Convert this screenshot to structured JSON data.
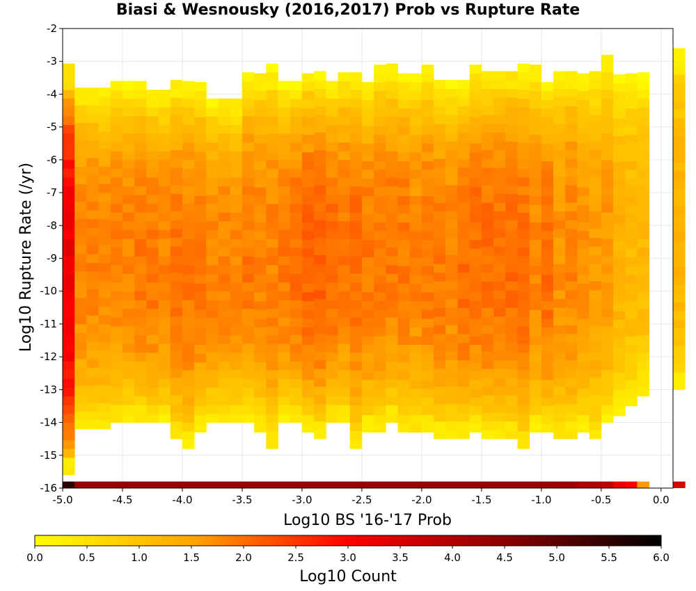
{
  "chart_data": {
    "type": "heatmap",
    "title": "Biasi & Wesnousky (2016,2017) Prob vs Rupture Rate",
    "xlabel": "Log10 BS '16-'17 Prob",
    "ylabel": "Log10 Rupture Rate (/yr)",
    "xlim": [
      -5.0,
      0.1
    ],
    "ylim": [
      -16,
      -2
    ],
    "x_ticks": [
      "-5.0",
      "-4.5",
      "-4.0",
      "-3.5",
      "-3.0",
      "-2.5",
      "-2.0",
      "-1.5",
      "-1.0",
      "-0.5",
      "0.0"
    ],
    "y_ticks": [
      "-2",
      "-3",
      "-4",
      "-5",
      "-6",
      "-7",
      "-8",
      "-9",
      "-10",
      "-11",
      "-12",
      "-13",
      "-14",
      "-15",
      "-16"
    ],
    "grid": true,
    "bin_width": 0.1,
    "bin_height": 0.2667,
    "colorbar": {
      "label": "Log10 Count",
      "range": [
        0,
        6
      ],
      "ticks": [
        "0.0",
        "0.5",
        "1.0",
        "1.5",
        "2.0",
        "2.5",
        "3.0",
        "3.5",
        "4.0",
        "4.5",
        "5.0",
        "5.5",
        "6.0"
      ],
      "colors": [
        "#ffff00",
        "#ffa500",
        "#ff0000",
        "#8b0000",
        "#000000"
      ]
    },
    "value_profile_description_values": {
      "column_bottom": [
        -15.6,
        -14.2,
        -14.2,
        -14.2,
        -14.0,
        -14.0,
        -14.0,
        -14.0,
        -14.0,
        -14.5,
        -14.8,
        -14.3,
        -14.0,
        -14.0,
        -14.0,
        -14.0,
        -14.3,
        -14.8,
        -14.0,
        -14.0,
        -14.3,
        -14.5,
        -14.0,
        -14.0,
        -14.8,
        -14.3,
        -14.3,
        -14.0,
        -14.3,
        -14.3,
        -14.3,
        -14.5,
        -14.5,
        -14.5,
        -14.3,
        -14.5,
        -14.5,
        -14.5,
        -14.8,
        -14.3,
        -14.3,
        -14.5,
        -14.5,
        -14.3,
        -14.5,
        -14.0,
        -13.8,
        -13.5,
        -13.2,
        -13.2,
        -13.5,
        -13.0
      ],
      "column_top": [
        -3.3,
        -3.8,
        -3.8,
        -4.0,
        -3.8,
        -3.8,
        -3.8,
        -4.0,
        -4.0,
        -3.8,
        -3.8,
        -3.8,
        -4.3,
        -4.3,
        -4.3,
        -3.5,
        -3.5,
        -3.3,
        -3.8,
        -3.8,
        -3.5,
        -3.5,
        -3.8,
        -3.5,
        -3.5,
        -3.8,
        -3.3,
        -3.3,
        -3.5,
        -3.5,
        -3.3,
        -3.8,
        -3.8,
        -3.8,
        -3.3,
        -3.5,
        -3.3,
        -3.3,
        -3.3,
        -3.3,
        -3.8,
        -3.5,
        -3.3,
        -3.5,
        -3.5,
        -3.0,
        -3.5,
        -3.5,
        -3.5,
        -3.5,
        -3.5,
        -2.7
      ],
      "peak_log10_count": [
        3.2,
        1.8,
        1.8,
        1.8,
        1.8,
        1.8,
        1.9,
        1.9,
        1.8,
        1.9,
        1.9,
        1.9,
        1.8,
        1.8,
        1.8,
        1.9,
        1.8,
        1.8,
        1.9,
        2.0,
        2.1,
        2.1,
        2.0,
        1.9,
        2.0,
        1.9,
        1.9,
        1.9,
        1.9,
        1.8,
        1.9,
        1.9,
        1.8,
        2.0,
        2.0,
        2.0,
        2.0,
        2.0,
        2.0,
        1.8,
        2.0,
        1.7,
        1.8,
        1.7,
        1.6,
        1.6,
        1.3,
        1.2,
        1.2,
        1.0,
        1.0,
        1.3
      ],
      "baseline_row_log10_count": [
        5.5,
        4.3,
        4.3,
        4.3,
        4.3,
        4.3,
        4.3,
        4.3,
        4.3,
        4.3,
        4.3,
        4.3,
        4.3,
        4.3,
        4.3,
        4.3,
        4.3,
        4.3,
        4.3,
        4.3,
        4.3,
        4.3,
        4.3,
        4.3,
        4.3,
        4.3,
        4.3,
        4.3,
        4.3,
        4.3,
        4.3,
        4.3,
        4.3,
        4.3,
        4.3,
        4.3,
        4.3,
        4.3,
        4.3,
        4.3,
        4.3,
        4.2,
        4.2,
        4.0,
        4.0,
        3.8,
        3.3,
        3.0,
        1.6,
        3.0,
        null,
        3.5
      ]
    },
    "y_range": [
      -16,
      -2
    ],
    "x_range": [
      -5.0,
      0.1
    ]
  }
}
